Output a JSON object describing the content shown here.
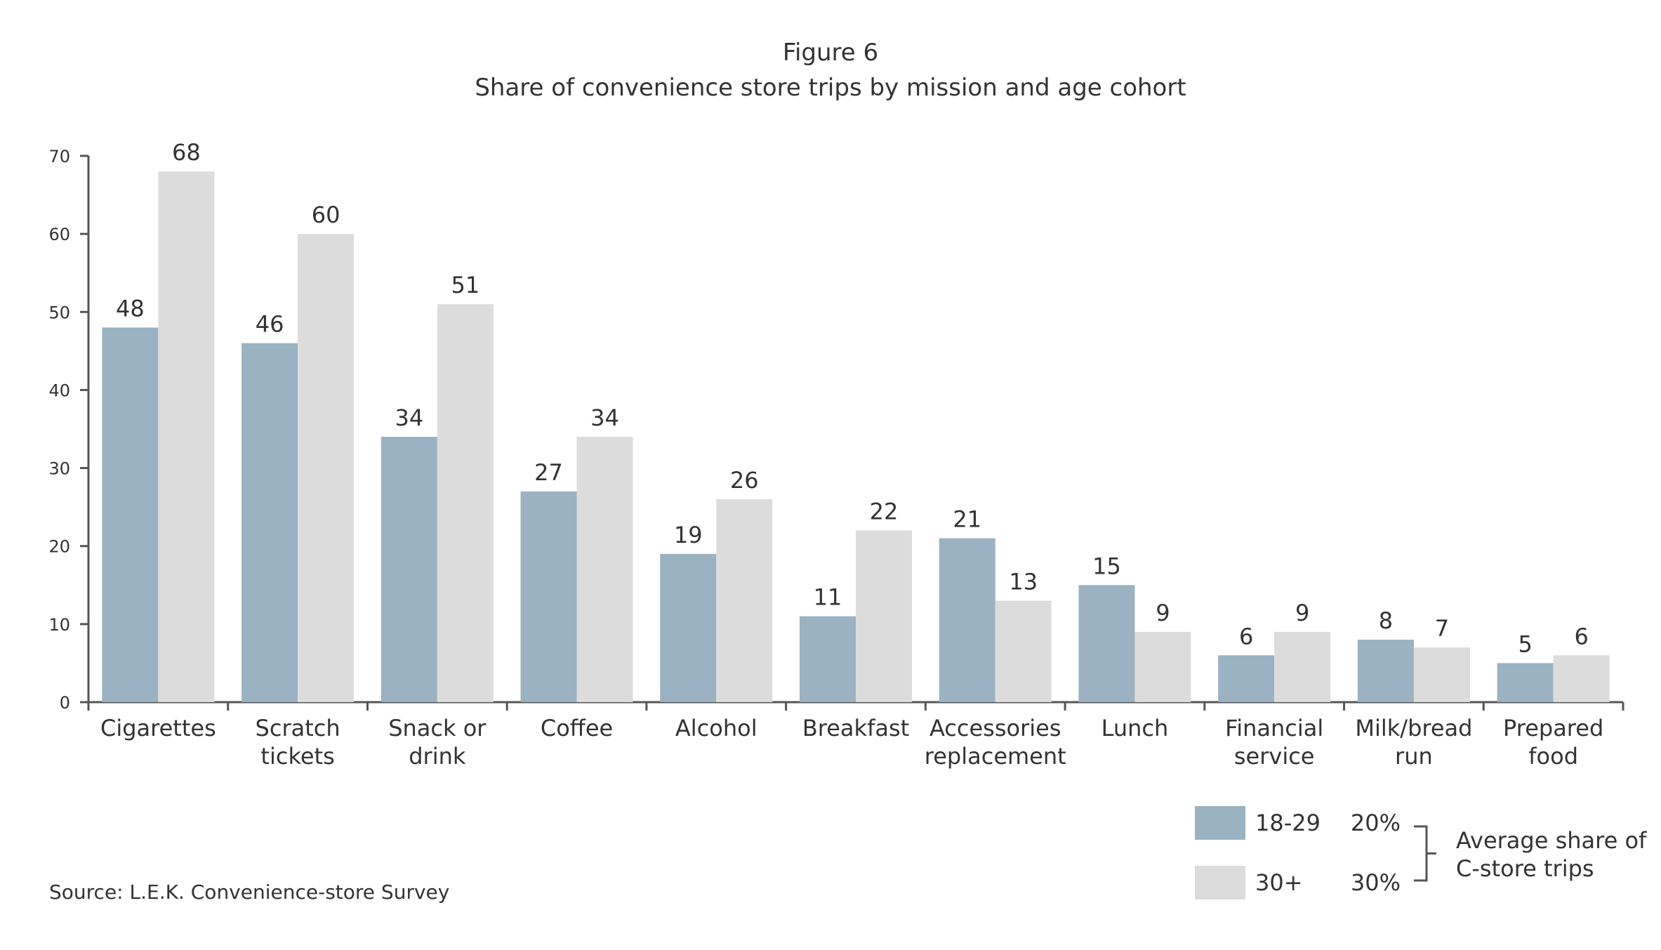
{
  "header": {
    "figure_label": "Figure 6",
    "title": "Share of convenience store trips by mission and age cohort"
  },
  "source": "Source: L.E.K. Convenience-store Survey",
  "colors": {
    "series_18_29": "#9ab2c2",
    "series_30_plus": "#dcdcdc",
    "axis": "#555555",
    "text": "#333333"
  },
  "chart_data": {
    "type": "bar",
    "title": "Share of convenience store trips by mission and age cohort",
    "categories": [
      [
        "Cigarettes"
      ],
      [
        "Scratch",
        "tickets"
      ],
      [
        "Snack or",
        "drink"
      ],
      [
        "Coffee"
      ],
      [
        "Alcohol"
      ],
      [
        "Breakfast"
      ],
      [
        "Accessories",
        "replacement"
      ],
      [
        "Lunch"
      ],
      [
        "Financial",
        "service"
      ],
      [
        "Milk/bread",
        "run"
      ],
      [
        "Prepared",
        "food"
      ]
    ],
    "series": [
      {
        "name": "18-29",
        "values": [
          48,
          46,
          34,
          27,
          19,
          11,
          21,
          15,
          6,
          8,
          5
        ],
        "value_labels": [
          "48",
          "46",
          "34",
          "27",
          "19",
          "11",
          "21",
          "15",
          "6",
          "8",
          "5"
        ]
      },
      {
        "name": "30+",
        "values": [
          68,
          60,
          51,
          34,
          26,
          22,
          13,
          9,
          9,
          7,
          6
        ],
        "value_labels": [
          "68",
          "60",
          "51",
          "34",
          "26",
          "22",
          "13",
          "9",
          "9",
          "7",
          "6"
        ]
      }
    ],
    "ylim": [
      0,
      70
    ],
    "yticks": [
      "0",
      "10",
      "20",
      "30",
      "40",
      "50",
      "60",
      "70"
    ],
    "xlabel": "",
    "ylabel": "",
    "grid": false,
    "legend": {
      "position": "bottom-right",
      "entries": [
        {
          "label": "18-29",
          "average": "20%"
        },
        {
          "label": "30+",
          "average": "30%"
        }
      ],
      "bracket_label": [
        "Average share of",
        "C-store trips"
      ]
    }
  }
}
